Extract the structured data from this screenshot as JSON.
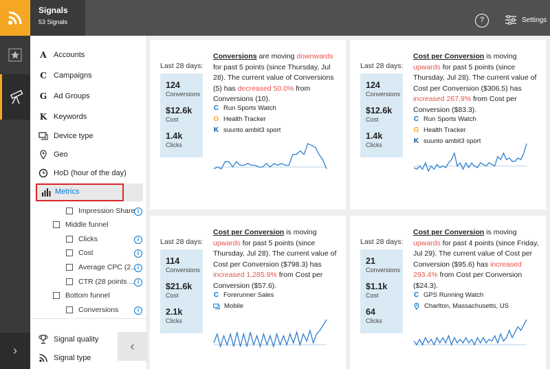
{
  "app": {
    "title": "Signals",
    "subtitle": "53 Signals",
    "settings_label": "Settings",
    "help_label": "?"
  },
  "icons": {
    "logo": "rss-icon",
    "star": "star-icon",
    "scope": "telescope-icon"
  },
  "nav": {
    "items": [
      {
        "icon": "A",
        "label": "Accounts"
      },
      {
        "icon": "C",
        "label": "Campaigns"
      },
      {
        "icon": "G",
        "label": "Ad Groups"
      },
      {
        "icon": "K",
        "label": "Keywords"
      },
      {
        "icon": "device-type-icon",
        "label": "Device type"
      },
      {
        "icon": "geo-pin-icon",
        "label": "Geo"
      },
      {
        "icon": "clock-icon",
        "label": "HoD (hour of the day)"
      }
    ],
    "metrics_label": "Metrics",
    "sub_items": [
      {
        "label": "Impression Share",
        "info": true
      },
      {
        "label": "Middle funnel",
        "info": false
      },
      {
        "label": "Clicks",
        "info": true
      },
      {
        "label": "Cost",
        "info": true
      },
      {
        "label": "Average CPC (2...",
        "info": true
      },
      {
        "label": "CTR (28 points ...",
        "info": true
      },
      {
        "label": "Bottom funnel",
        "info": false
      },
      {
        "label": "Conversions",
        "info": true
      }
    ],
    "signal_quality": "Signal quality",
    "signal_type": "Signal type"
  },
  "cards": [
    {
      "last28": "Last 28 days:",
      "stats": [
        {
          "value": "124",
          "label": "Conversions"
        },
        {
          "value": "$12.6k",
          "label": "Cost"
        },
        {
          "value": "1.4k",
          "label": "Clicks"
        }
      ],
      "metric": "Conversions",
      "t1": " are moving ",
      "direction": "downwards",
      "t2": " for past 5 points (since Thursday, Jul 28). The current value of Conversions (5) has ",
      "change": "decreased 50.0%",
      "t3": " from Conversions (10).",
      "entities": [
        {
          "icon": "C",
          "label": "Run Sports Watch"
        },
        {
          "icon": "G",
          "label": "Health Tracker"
        },
        {
          "icon": "K",
          "label": "suunto ambit3 sport"
        }
      ],
      "spark": [
        2,
        3,
        2,
        6,
        6,
        3,
        6,
        4,
        4,
        5,
        4,
        4,
        3,
        3,
        5,
        3,
        5,
        4,
        5,
        4,
        4,
        10,
        10,
        12,
        10,
        16,
        15,
        14,
        10,
        7,
        2
      ],
      "baseline": 3
    },
    {
      "last28": "Last 28 days:",
      "stats": [
        {
          "value": "124",
          "label": "Conversions"
        },
        {
          "value": "$12.6k",
          "label": "Cost"
        },
        {
          "value": "1.4k",
          "label": "Clicks"
        }
      ],
      "metric": "Cost per Conversion",
      "t1": " is moving ",
      "direction": "upwards",
      "t2": " for past 5 points (since Thursday, Jul 28). The current value of Cost per Conversion ($306.5) has ",
      "change": "increased 267.9%",
      "t3": " from Cost per Conversion ($83.3).",
      "entities": [
        {
          "icon": "C",
          "label": "Run Sports Watch"
        },
        {
          "icon": "G",
          "label": "Health Tracker"
        },
        {
          "icon": "K",
          "label": "suunto ambit3 sport"
        }
      ],
      "spark": [
        3,
        2,
        4,
        2,
        6,
        1,
        4,
        2,
        5,
        3,
        4,
        3,
        6,
        8,
        12,
        4,
        6,
        2,
        6,
        3,
        6,
        4,
        3,
        6,
        5,
        4,
        6,
        5,
        4,
        10,
        8,
        12,
        8,
        9,
        7,
        7,
        9,
        8,
        12,
        18
      ],
      "baseline": 4
    },
    {
      "last28": "Last 28 days:",
      "stats": [
        {
          "value": "114",
          "label": "Conversions"
        },
        {
          "value": "$21.6k",
          "label": "Cost"
        },
        {
          "value": "2.1k",
          "label": "Clicks"
        }
      ],
      "metric": "Cost per Conversion",
      "t1": " is moving ",
      "direction": "upwards",
      "t2": " for past 5 points (since Thursday, Jul 28). The current value of Cost per Conversion ($798.3) has ",
      "change": "increased 1,285.9%",
      "t3": " from Cost per Conversion ($57.6).",
      "entities": [
        {
          "icon": "C",
          "label": "Forerunner Sales"
        },
        {
          "icon": "device-type-icon",
          "label": "Mobile"
        }
      ],
      "spark": [
        3,
        8,
        1,
        7,
        2,
        8,
        1,
        9,
        1,
        8,
        1,
        9,
        2,
        7,
        1,
        8,
        2,
        7,
        1,
        8,
        2,
        7,
        2,
        8,
        3,
        9,
        2,
        8,
        4,
        10,
        3,
        8,
        10,
        13,
        16
      ],
      "baseline": 2
    },
    {
      "last28": "Last 28 days:",
      "stats": [
        {
          "value": "21",
          "label": "Conversions"
        },
        {
          "value": "$1.1k",
          "label": "Cost"
        },
        {
          "value": "64",
          "label": "Clicks"
        }
      ],
      "metric": "Cost per Conversion",
      "t1": " is moving ",
      "direction": "upwards",
      "t2": " for past 4 points (since Friday, Jul 29). The current value of Cost per Conversion ($95.6) has ",
      "change": "increased 293.4%",
      "t3": " from Cost per Conversion ($24.3).",
      "entities": [
        {
          "icon": "C",
          "label": "GPS Running Watch"
        },
        {
          "icon": "geo-pin-icon",
          "label": "Charlton, Massachusetts, US"
        }
      ],
      "spark": [
        4,
        2,
        5,
        2,
        6,
        3,
        5,
        2,
        6,
        3,
        6,
        3,
        7,
        2,
        6,
        3,
        5,
        3,
        6,
        3,
        5,
        2,
        6,
        3,
        6,
        3,
        5,
        4,
        7,
        3,
        8,
        4,
        6,
        10,
        6,
        9,
        12,
        10,
        13,
        16
      ],
      "baseline": 2
    }
  ]
}
